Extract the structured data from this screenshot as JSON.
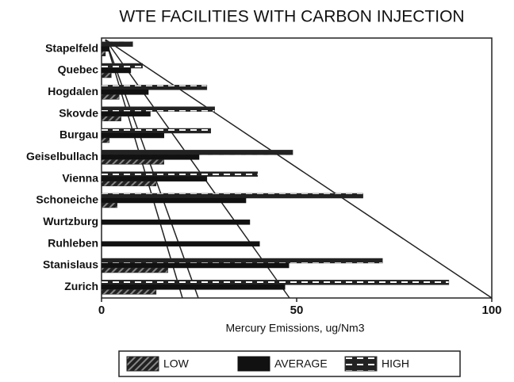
{
  "chart_data": {
    "type": "bar",
    "orientation": "horizontal",
    "title": "WTE FACILITIES WITH CARBON INJECTION",
    "x_label": "Mercury Emissions, ug/Nm3",
    "categories": [
      "Stapelfeld",
      "Quebec",
      "Hogdalen",
      "Skovde",
      "Burgau",
      "Geiselbullach",
      "Vienna",
      "Schoneiche",
      "Wurtzburg",
      "Ruhleben",
      "Stanislaus",
      "Zurich"
    ],
    "series": [
      {
        "name": "LOW",
        "color": "#222222",
        "values": [
          1,
          2.5,
          4.5,
          5,
          2,
          16,
          14,
          4,
          null,
          null,
          17,
          14
        ]
      },
      {
        "name": "AVERAGE",
        "color": "#111111",
        "values": [
          2,
          7.5,
          12,
          12.5,
          16,
          25,
          27,
          37,
          38,
          40.5,
          48,
          47
        ]
      },
      {
        "name": "HIGH",
        "color": "#333333",
        "values": [
          8,
          10.5,
          27,
          29,
          28,
          49,
          40,
          67,
          null,
          null,
          72,
          89
        ]
      }
    ],
    "xlim": [
      0,
      100
    ],
    "xticks": [
      0,
      50,
      100
    ]
  }
}
